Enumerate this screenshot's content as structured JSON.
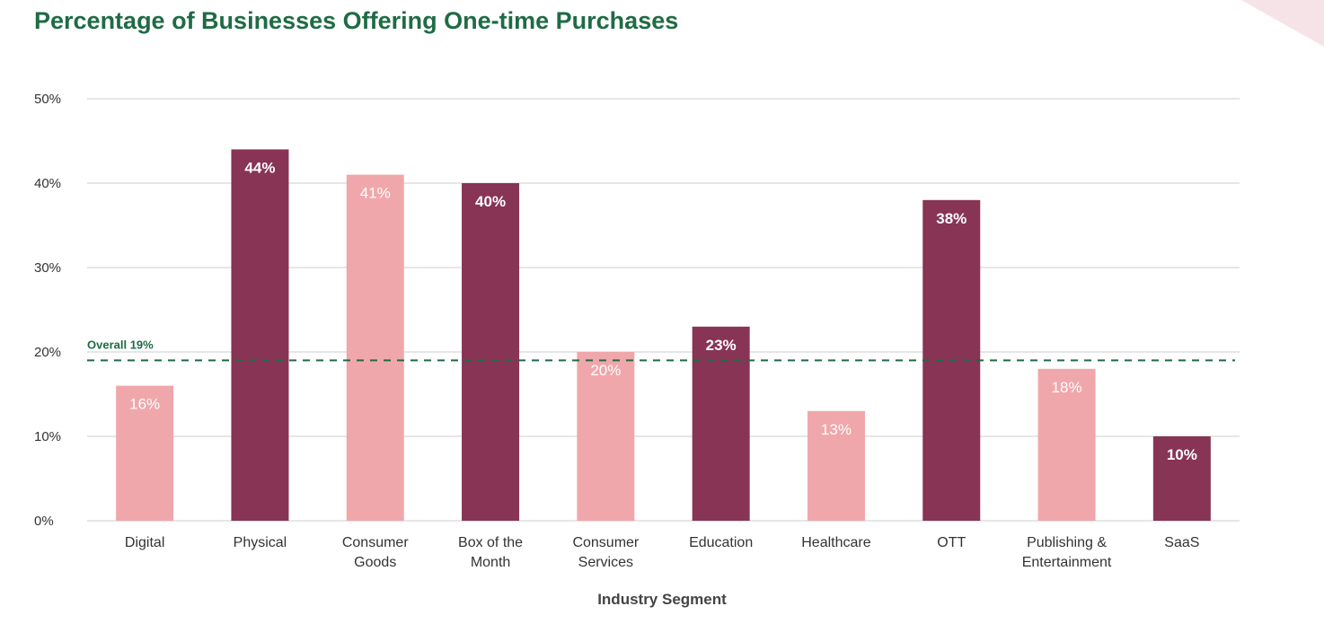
{
  "title": "Percentage of Businesses Offering One-time Purchases",
  "colors": {
    "light": "#f0a7ab",
    "dark": "#873455",
    "reference": "#1f6b45",
    "grid": "#cccccc",
    "title": "#1f6b45"
  },
  "chart_data": {
    "type": "bar",
    "title": "Percentage of Businesses Offering One-time Purchases",
    "xlabel": "Industry Segment",
    "ylabel": "",
    "ylim": [
      0,
      50
    ],
    "yticks": [
      "0%",
      "10%",
      "20%",
      "30%",
      "40%",
      "50%"
    ],
    "yticks_values": [
      0,
      10,
      20,
      30,
      40,
      50
    ],
    "categories": [
      [
        "Digital"
      ],
      [
        "Physical"
      ],
      [
        "Consumer",
        "Goods"
      ],
      [
        "Box of the",
        "Month"
      ],
      [
        "Consumer",
        "Services"
      ],
      [
        "Education"
      ],
      [
        "Healthcare"
      ],
      [
        "OTT"
      ],
      [
        "Publishing &",
        "Entertainment"
      ],
      [
        "SaaS"
      ]
    ],
    "values": [
      16,
      44,
      41,
      40,
      20,
      23,
      13,
      38,
      18,
      10
    ],
    "data_labels": [
      "16%",
      "44%",
      "41%",
      "40%",
      "20%",
      "23%",
      "13%",
      "38%",
      "18%",
      "10%"
    ],
    "bar_shade": [
      "light",
      "dark",
      "light",
      "dark",
      "light",
      "dark",
      "light",
      "dark",
      "light",
      "dark"
    ],
    "reference_line": {
      "value": 19,
      "label": "Overall 19%",
      "style": "dashed"
    },
    "grid": true,
    "legend": "none"
  }
}
